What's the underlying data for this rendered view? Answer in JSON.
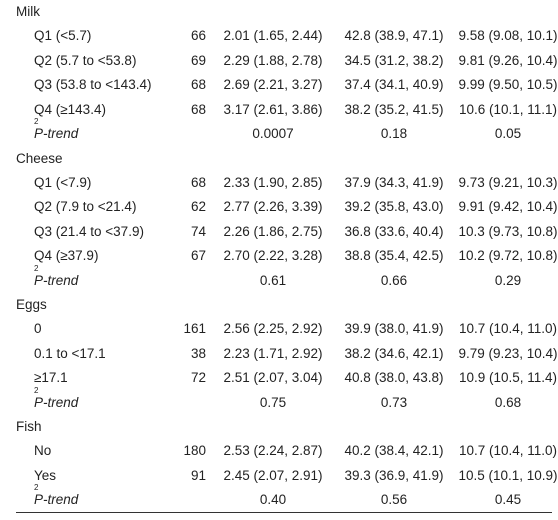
{
  "sections": [
    {
      "title": "Milk",
      "rows": [
        {
          "label": "Q1 (<5.7)",
          "n": "66",
          "v1": "2.01 (1.65, 2.44)",
          "v2": "42.8 (38.9, 47.1)",
          "v3": "9.58 (9.08, 10.1)"
        },
        {
          "label": "Q2 (5.7 to <53.8)",
          "n": "69",
          "v1": "2.29 (1.88, 2.78)",
          "v2": "34.5 (31.2, 38.2)",
          "v3": "9.81 (9.26, 10.4)"
        },
        {
          "label": "Q3 (53.8 to <143.4)",
          "n": "68",
          "v1": "2.69 (2.21, 3.27)",
          "v2": "37.4 (34.1, 40.9)",
          "v3": "9.99 (9.50, 10.5)"
        },
        {
          "label": "Q4 (≥143.4)",
          "n": "68",
          "v1": "3.17 (2.61, 3.86)",
          "v2": "38.2 (35.2, 41.5)",
          "v3": "10.6 (10.1, 11.1)"
        }
      ],
      "ptrend": {
        "label": "P-trend",
        "sup": "2",
        "v1": "0.0007",
        "v2": "0.18",
        "v3": "0.05"
      }
    },
    {
      "title": "Cheese",
      "rows": [
        {
          "label": "Q1 (<7.9)",
          "n": "68",
          "v1": "2.33 (1.90, 2.85)",
          "v2": "37.9 (34.3, 41.9)",
          "v3": "9.73 (9.21, 10.3)"
        },
        {
          "label": "Q2 (7.9 to <21.4)",
          "n": "62",
          "v1": "2.77 (2.26, 3.39)",
          "v2": "39.2 (35.8, 43.0)",
          "v3": "9.91 (9.42, 10.4)"
        },
        {
          "label": "Q3 (21.4 to <37.9)",
          "n": "74",
          "v1": "2.26 (1.86, 2.75)",
          "v2": "36.8 (33.6, 40.4)",
          "v3": "10.3 (9.73, 10.8)"
        },
        {
          "label": "Q4 (≥37.9)",
          "n": "67",
          "v1": "2.70 (2.22, 3.28)",
          "v2": "38.8 (35.4, 42.5)",
          "v3": "10.2 (9.72, 10.8)"
        }
      ],
      "ptrend": {
        "label": "P-trend",
        "sup": "2",
        "v1": "0.61",
        "v2": "0.66",
        "v3": "0.29"
      }
    },
    {
      "title": "Eggs",
      "rows": [
        {
          "label": "0",
          "n": "161",
          "v1": "2.56 (2.25, 2.92)",
          "v2": "39.9 (38.0, 41.9)",
          "v3": "10.7 (10.4, 11.0)"
        },
        {
          "label": "0.1 to <17.1",
          "n": "38",
          "v1": "2.23 (1.71, 2.92)",
          "v2": "38.2 (34.6, 42.1)",
          "v3": "9.79 (9.23, 10.4)"
        },
        {
          "label": "≥17.1",
          "n": "72",
          "v1": "2.51 (2.07, 3.04)",
          "v2": "40.8 (38.0, 43.8)",
          "v3": "10.9 (10.5, 11.4)"
        }
      ],
      "ptrend": {
        "label": "P-trend",
        "sup": "2",
        "v1": "0.75",
        "v2": "0.73",
        "v3": "0.68"
      }
    },
    {
      "title": "Fish",
      "rows": [
        {
          "label": "No",
          "n": "180",
          "v1": "2.53 (2.24, 2.87)",
          "v2": "40.2 (38.4, 42.1)",
          "v3": "10.7 (10.4, 11.0)"
        },
        {
          "label": "Yes",
          "n": "91",
          "v1": "2.45 (2.07, 2.91)",
          "v2": "39.3 (36.9, 41.9)",
          "v3": "10.5 (10.1, 10.9)"
        }
      ],
      "ptrend": {
        "label": "P-trend",
        "sup": "2",
        "v1": "0.40",
        "v2": "0.56",
        "v3": "0.45"
      }
    }
  ]
}
